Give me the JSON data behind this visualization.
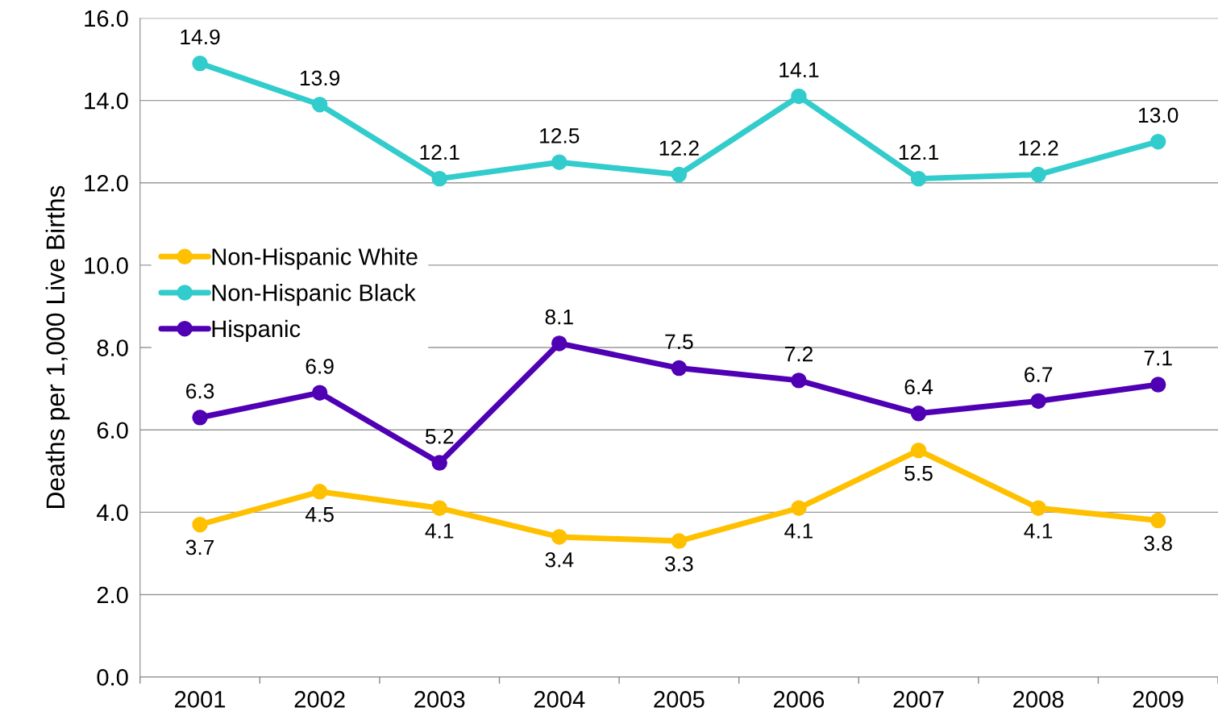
{
  "chart_data": {
    "type": "line",
    "ylabel": "Deaths per 1,000 Live Births",
    "categories": [
      "2001",
      "2002",
      "2003",
      "2004",
      "2005",
      "2006",
      "2007",
      "2008",
      "2009"
    ],
    "series": [
      {
        "name": "Non-Hispanic White",
        "color": "#ffc000",
        "values": [
          3.7,
          4.5,
          4.1,
          3.4,
          3.3,
          4.1,
          5.5,
          4.1,
          3.8
        ],
        "value_labels": [
          "3.7",
          "4.5",
          "4.1",
          "3.4",
          "3.3",
          "4.1",
          "5.5",
          "4.1",
          "3.8"
        ]
      },
      {
        "name": "Non-Hispanic Black",
        "color": "#33cccc",
        "values": [
          14.9,
          13.9,
          12.1,
          12.5,
          12.2,
          14.1,
          12.1,
          12.2,
          13.0
        ],
        "value_labels": [
          "14.9",
          "13.9",
          "12.1",
          "12.5",
          "12.2",
          "14.1",
          "12.1",
          "12.2",
          "13.0"
        ]
      },
      {
        "name": "Hispanic",
        "color": "#5000b4",
        "values": [
          6.3,
          6.9,
          5.2,
          8.1,
          7.5,
          7.2,
          6.4,
          6.7,
          7.1
        ],
        "value_labels": [
          "6.3",
          "6.9",
          "5.2",
          "8.1",
          "7.5",
          "7.2",
          "6.4",
          "6.7",
          "7.1"
        ]
      }
    ],
    "ylim": [
      0,
      16
    ],
    "yticks": [
      {
        "value": 0,
        "label": "0.0"
      },
      {
        "value": 2,
        "label": "2.0"
      },
      {
        "value": 4,
        "label": "4.0"
      },
      {
        "value": 6,
        "label": "6.0"
      },
      {
        "value": 8,
        "label": "8.0"
      },
      {
        "value": 10,
        "label": "10.0"
      },
      {
        "value": 12,
        "label": "12.0"
      },
      {
        "value": 14,
        "label": "14.0"
      },
      {
        "value": 16,
        "label": "16.0"
      }
    ],
    "grid": "y",
    "legend": "left",
    "marker": "circle",
    "line_style": "solid"
  }
}
